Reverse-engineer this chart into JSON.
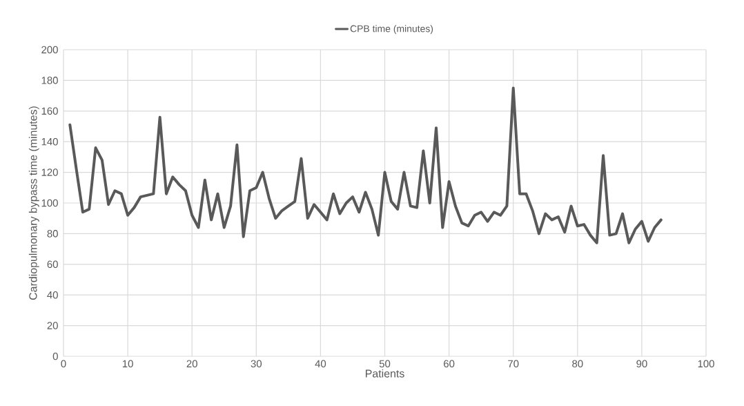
{
  "chart_data": {
    "type": "line",
    "x": [
      1,
      2,
      3,
      4,
      5,
      6,
      7,
      8,
      9,
      10,
      11,
      12,
      13,
      14,
      15,
      16,
      17,
      18,
      19,
      20,
      21,
      22,
      23,
      24,
      25,
      26,
      27,
      28,
      29,
      30,
      31,
      32,
      33,
      34,
      35,
      36,
      37,
      38,
      39,
      40,
      41,
      42,
      43,
      44,
      45,
      46,
      47,
      48,
      49,
      50,
      51,
      52,
      53,
      54,
      55,
      56,
      57,
      58,
      59,
      60,
      61,
      62,
      63,
      64,
      65,
      66,
      67,
      68,
      69,
      70,
      71,
      72,
      73,
      74,
      75,
      76,
      77,
      78,
      79,
      80,
      81,
      82,
      83,
      84,
      85,
      86,
      87,
      88,
      89,
      90,
      91,
      92,
      93
    ],
    "series": [
      {
        "name": "CPB time (minutes)",
        "color": "#595959",
        "values": [
          151,
          122,
          94,
          96,
          136,
          128,
          99,
          108,
          106,
          92,
          97,
          104,
          105,
          106,
          156,
          106,
          117,
          112,
          108,
          92,
          84,
          115,
          89,
          106,
          84,
          98,
          138,
          78,
          108,
          110,
          120,
          103,
          90,
          95,
          98,
          101,
          129,
          90,
          99,
          94,
          89,
          106,
          93,
          100,
          104,
          94,
          107,
          96,
          79,
          120,
          101,
          96,
          120,
          98,
          97,
          134,
          100,
          149,
          84,
          114,
          98,
          87,
          85,
          92,
          94,
          88,
          94,
          92,
          98,
          175,
          106,
          106,
          95,
          80,
          93,
          89,
          91,
          81,
          98,
          85,
          86,
          79,
          74,
          131,
          79,
          80,
          93,
          74,
          83,
          88,
          75,
          84,
          89
        ]
      }
    ],
    "xlabel": "Patients",
    "ylabel": "Cardiopulmonary  bypass time (minutes)",
    "xlim": [
      0,
      100
    ],
    "xticks": [
      0,
      10,
      20,
      30,
      40,
      50,
      60,
      70,
      80,
      90,
      100
    ],
    "ylim": [
      0,
      200
    ],
    "yticks": [
      0,
      20,
      40,
      60,
      80,
      100,
      120,
      140,
      160,
      180,
      200
    ],
    "grid": true,
    "legend": "top"
  }
}
